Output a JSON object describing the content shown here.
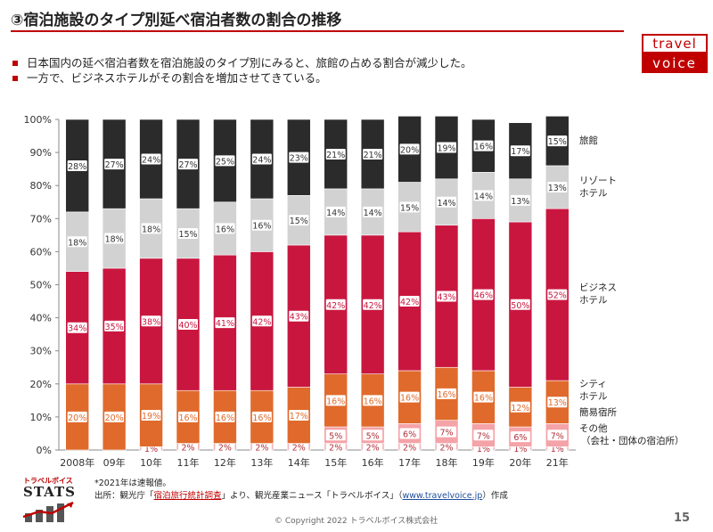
{
  "header": {
    "title": "③宿泊施設のタイプ別延べ宿泊者数の割合の推移",
    "logo_top": "travel",
    "logo_bottom": "voice"
  },
  "bullets": [
    "日本国内の延べ宿泊者数を宿泊施設のタイプ別にみると、旅館の占める割合が減少した。",
    "一方で、ビジネスホテルがその割合を増加させてきている。"
  ],
  "chart_data": {
    "type": "bar",
    "stacked": true,
    "percent_stacked": true,
    "categories": [
      "2008年",
      "09年",
      "10年",
      "11年",
      "12年",
      "13年",
      "14年",
      "15年",
      "16年",
      "17年",
      "18年",
      "19年",
      "20年",
      "21年"
    ],
    "y_ticks": [
      "0%",
      "10%",
      "20%",
      "30%",
      "40%",
      "50%",
      "60%",
      "70%",
      "80%",
      "90%",
      "100%"
    ],
    "ylim": [
      0,
      100
    ],
    "grid": false,
    "legend_placement": "right",
    "series": [
      {
        "name": "その他\n（会社・団体の宿泊所）",
        "color": "#f2b7bb",
        "values": [
          0,
          0,
          1,
          2,
          2,
          2,
          2,
          2,
          2,
          2,
          2,
          1,
          1,
          1
        ],
        "labels": [
          "",
          "",
          "1%",
          "2%",
          "2%",
          "2%",
          "2%",
          "2%",
          "2%",
          "2%",
          "2%",
          "1%",
          "1%",
          "1%"
        ]
      },
      {
        "name": "簡易宿所",
        "color": "#f4a3a8",
        "values": [
          0,
          0,
          0,
          0,
          0,
          0,
          0,
          5,
          5,
          6,
          7,
          7,
          6,
          7
        ],
        "labels": [
          "",
          "",
          "",
          "",
          "",
          "",
          "",
          "5%",
          "5%",
          "6%",
          "7%",
          "7%",
          "6%",
          "7%"
        ]
      },
      {
        "name": "シティ\nホテル",
        "color": "#e06a2c",
        "values": [
          20,
          20,
          19,
          16,
          16,
          16,
          17,
          16,
          16,
          16,
          16,
          16,
          12,
          13
        ],
        "labels": [
          "20%",
          "20%",
          "19%",
          "16%",
          "16%",
          "16%",
          "17%",
          "16%",
          "16%",
          "16%",
          "16%",
          "16%",
          "12%",
          "13%"
        ]
      },
      {
        "name": "ビジネス\nホテル",
        "color": "#c9163f",
        "values": [
          34,
          35,
          38,
          40,
          41,
          42,
          43,
          42,
          42,
          42,
          43,
          46,
          50,
          52
        ],
        "labels": [
          "34%",
          "35%",
          "38%",
          "40%",
          "41%",
          "42%",
          "43%",
          "42%",
          "42%",
          "42%",
          "43%",
          "46%",
          "50%",
          "52%"
        ]
      },
      {
        "name": "リゾート\nホテル",
        "color": "#d2d2d2",
        "values": [
          18,
          18,
          18,
          15,
          16,
          16,
          15,
          14,
          14,
          15,
          14,
          14,
          13,
          13
        ],
        "labels": [
          "18%",
          "18%",
          "18%",
          "15%",
          "16%",
          "16%",
          "15%",
          "14%",
          "14%",
          "15%",
          "14%",
          "14%",
          "13%",
          "13%"
        ]
      },
      {
        "name": "旅館",
        "color": "#2b2b2b",
        "values": [
          28,
          27,
          24,
          27,
          25,
          24,
          23,
          21,
          21,
          20,
          19,
          16,
          17,
          15
        ],
        "labels": [
          "28%",
          "27%",
          "24%",
          "27%",
          "25%",
          "24%",
          "23%",
          "21%",
          "21%",
          "20%",
          "19%",
          "16%",
          "17%",
          "15%"
        ]
      }
    ]
  },
  "footer": {
    "stats_label_top": "トラベルボイス",
    "stats_label": "STATS",
    "note_1": "*2021年は速報値。",
    "note_2a": "出所：観光庁「",
    "note_2_link": "宿泊旅行統計調査",
    "note_2b": "」より、観光産業ニュース「トラベルボイス」（",
    "note_2_url": "www.travelvoice.jp",
    "note_2c": "）作成",
    "copyright": "© Copyright 2022 トラベルボイス株式会社",
    "page_number": "15"
  }
}
